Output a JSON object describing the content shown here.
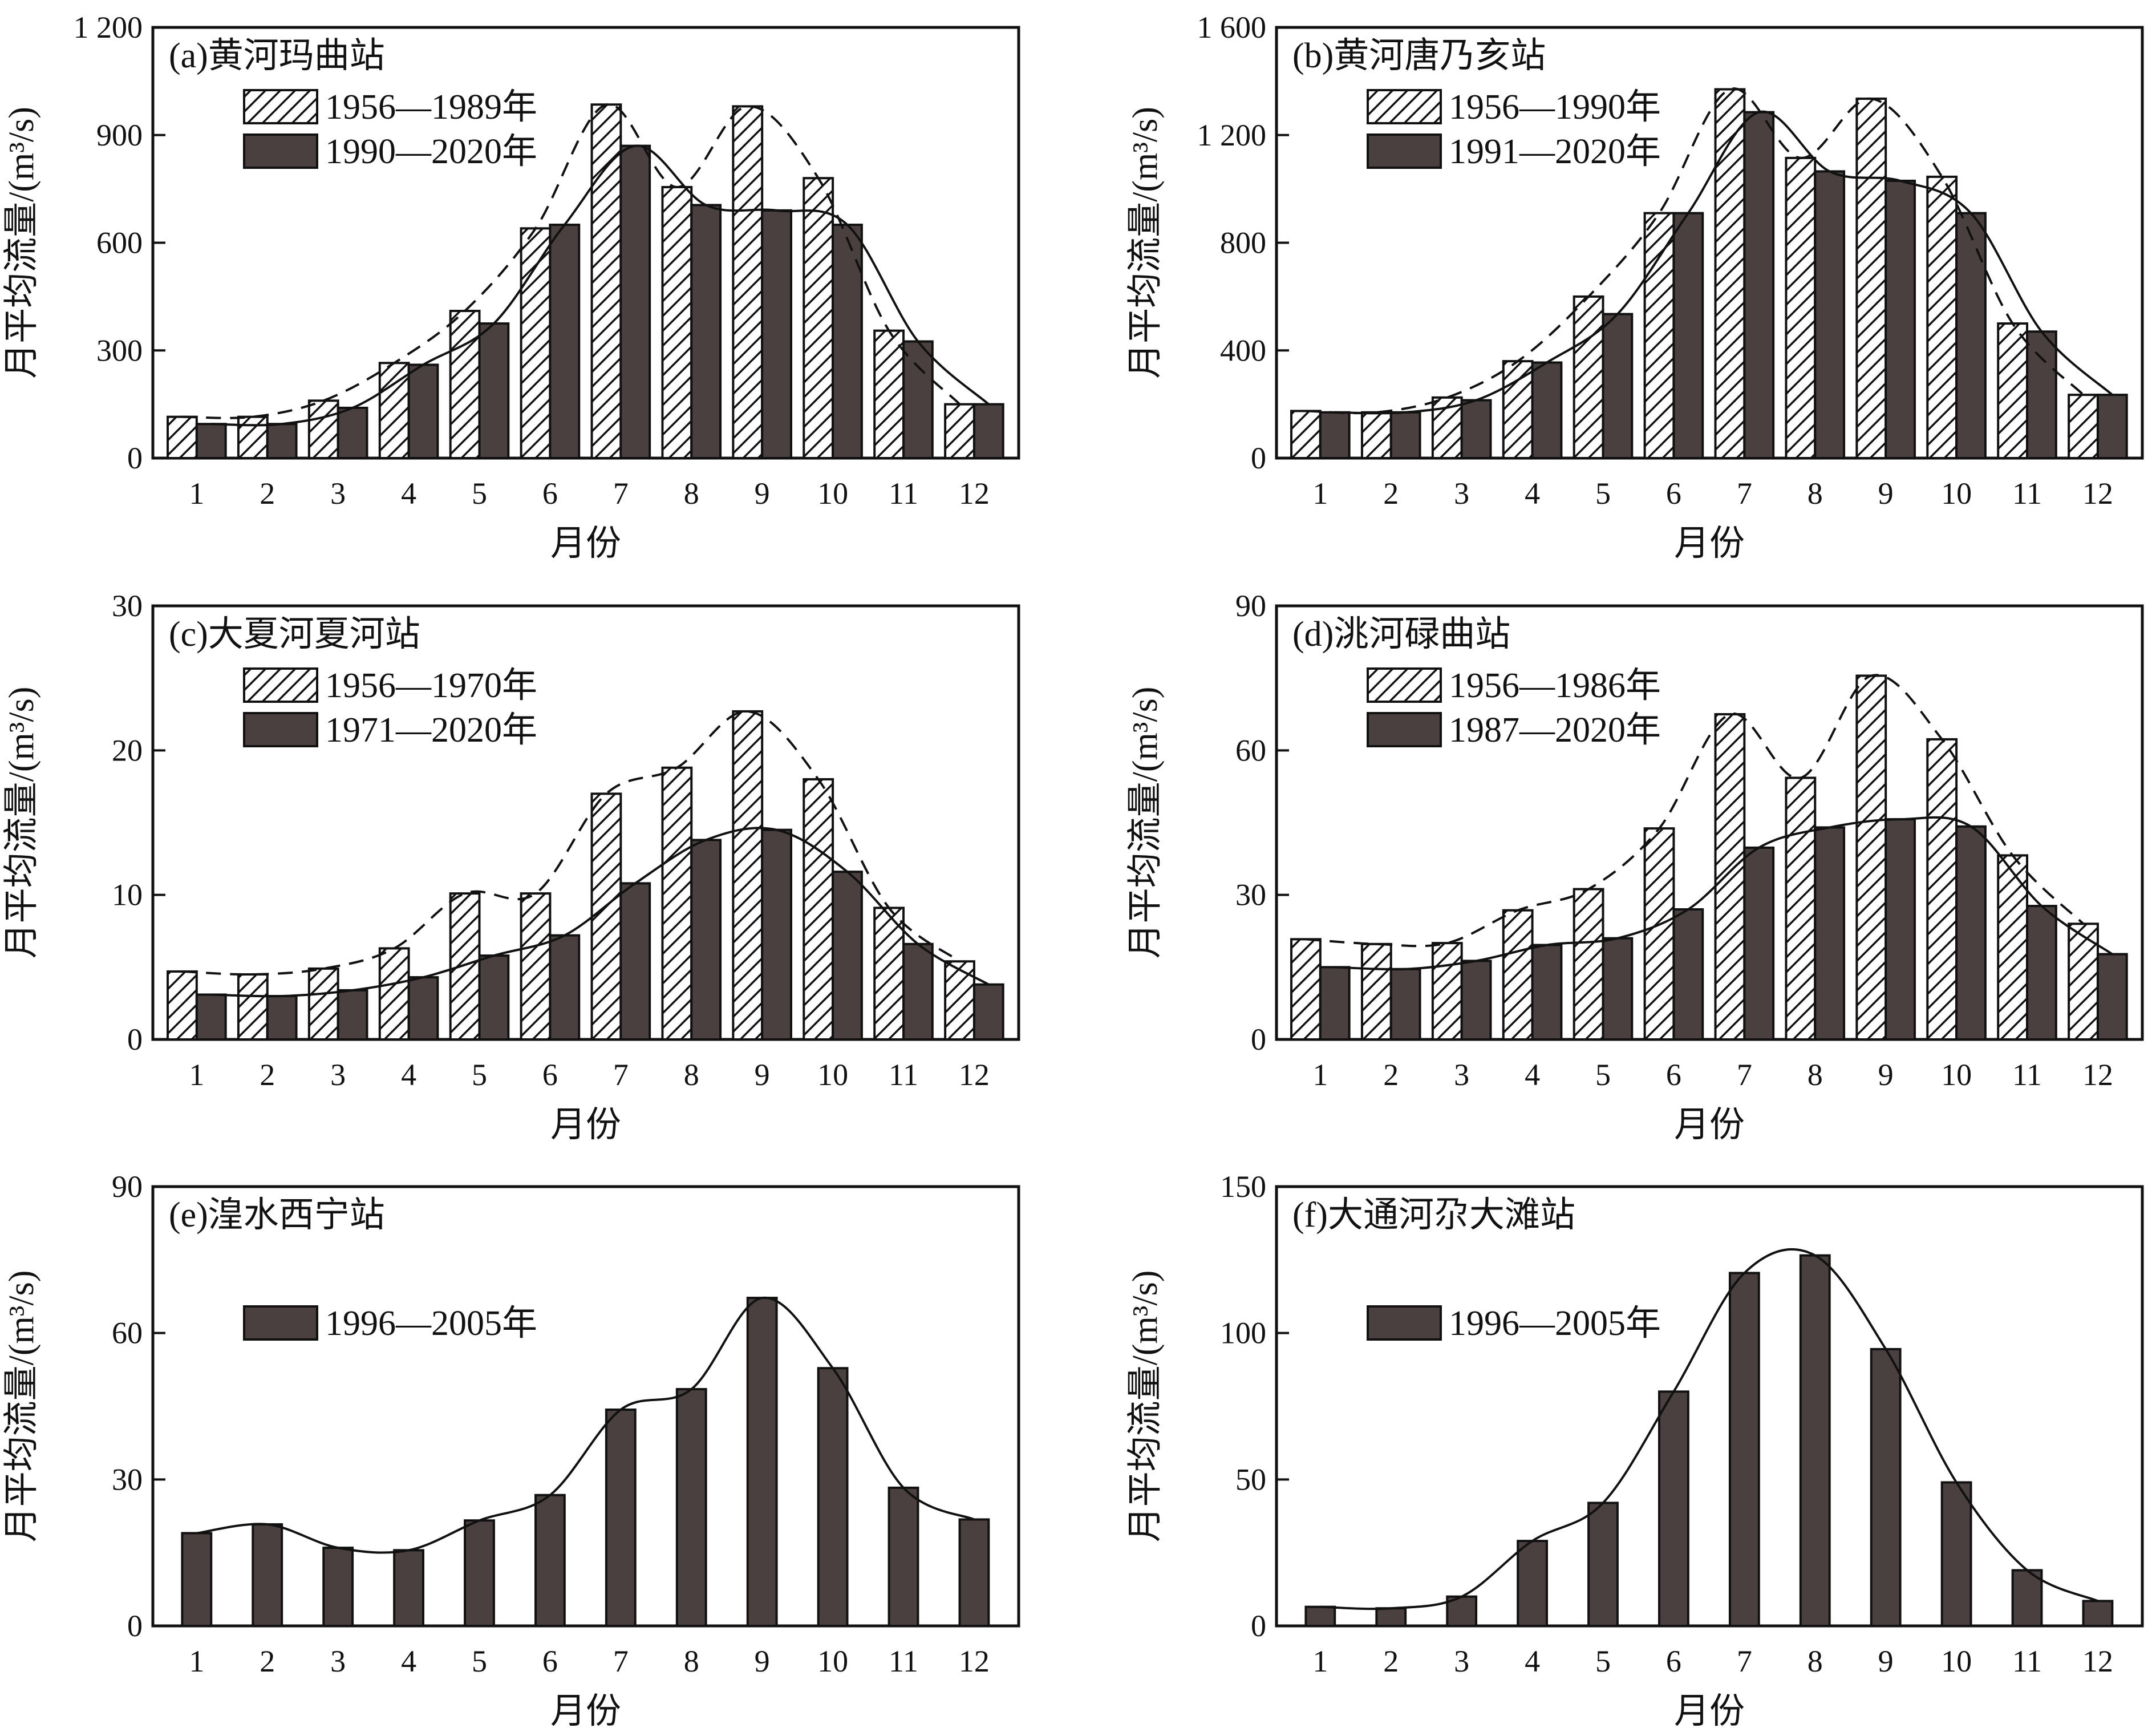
{
  "figure": {
    "dark_color": "#4a4040",
    "line_color": "#111111"
  },
  "chart_data": [
    {
      "type": "bar",
      "title": "(a)黄河玛曲站",
      "xlabel": "月份",
      "ylabel": "月平均流量/(m³/s)",
      "categories": [
        "1",
        "2",
        "3",
        "4",
        "5",
        "6",
        "7",
        "8",
        "9",
        "10",
        "11",
        "12"
      ],
      "y_ticks": [
        "0",
        "300",
        "600",
        "900",
        "1 200"
      ],
      "ylim": [
        0,
        1200
      ],
      "series": [
        {
          "name": "1956—1989年",
          "pattern": "hatched",
          "values": [
            115,
            115,
            160,
            265,
            410,
            640,
            985,
            755,
            980,
            780,
            355,
            150
          ]
        },
        {
          "name": "1990—2020年",
          "pattern": "dark",
          "values": [
            95,
            95,
            140,
            260,
            375,
            650,
            870,
            705,
            690,
            650,
            325,
            150
          ]
        }
      ],
      "trend_lines": [
        {
          "series": "1956—1989年",
          "style": "dashed"
        },
        {
          "series": "1990—2020年",
          "style": "solid"
        }
      ]
    },
    {
      "type": "bar",
      "title": "(b)黄河唐乃亥站",
      "xlabel": "月份",
      "ylabel": "月平均流量/(m³/s)",
      "categories": [
        "1",
        "2",
        "3",
        "4",
        "5",
        "6",
        "7",
        "8",
        "9",
        "10",
        "11",
        "12"
      ],
      "y_ticks": [
        "0",
        "400",
        "800",
        "1 200",
        "1 600"
      ],
      "ylim": [
        0,
        1600
      ],
      "series": [
        {
          "name": "1956—1990年",
          "pattern": "hatched",
          "values": [
            175,
            170,
            225,
            360,
            600,
            910,
            1370,
            1115,
            1335,
            1045,
            500,
            235
          ]
        },
        {
          "name": "1991—2020年",
          "pattern": "dark",
          "values": [
            170,
            170,
            215,
            355,
            535,
            910,
            1285,
            1065,
            1030,
            910,
            470,
            235
          ]
        }
      ],
      "trend_lines": [
        {
          "series": "1956—1990年",
          "style": "dashed"
        },
        {
          "series": "1991—2020年",
          "style": "solid"
        }
      ]
    },
    {
      "type": "bar",
      "title": "(c)大夏河夏河站",
      "xlabel": "月份",
      "ylabel": "月平均流量/(m³/s)",
      "categories": [
        "1",
        "2",
        "3",
        "4",
        "5",
        "6",
        "7",
        "8",
        "9",
        "10",
        "11",
        "12"
      ],
      "y_ticks": [
        "0",
        "10",
        "20",
        "30"
      ],
      "ylim": [
        0,
        30
      ],
      "series": [
        {
          "name": "1956—1970年",
          "pattern": "hatched",
          "values": [
            4.7,
            4.5,
            4.9,
            6.3,
            10.1,
            10.1,
            17.0,
            18.8,
            22.7,
            18.0,
            9.1,
            5.4
          ]
        },
        {
          "name": "1971—2020年",
          "pattern": "dark",
          "values": [
            3.1,
            3.0,
            3.4,
            4.3,
            5.8,
            7.2,
            10.8,
            13.8,
            14.5,
            11.6,
            6.6,
            3.8
          ]
        }
      ],
      "trend_lines": [
        {
          "series": "1956—1970年",
          "style": "dashed"
        },
        {
          "series": "1971—2020年",
          "style": "solid"
        }
      ]
    },
    {
      "type": "bar",
      "title": "(d)洮河碌曲站",
      "xlabel": "月份",
      "ylabel": "月平均流量/(m³/s)",
      "categories": [
        "1",
        "2",
        "3",
        "4",
        "5",
        "6",
        "7",
        "8",
        "9",
        "10",
        "11",
        "12"
      ],
      "y_ticks": [
        "0",
        "30",
        "60",
        "90"
      ],
      "ylim": [
        0,
        90
      ],
      "series": [
        {
          "name": "1956—1986年",
          "pattern": "hatched",
          "values": [
            20.8,
            19.8,
            20.0,
            26.8,
            31.2,
            43.8,
            67.5,
            54.3,
            75.5,
            62.3,
            38.2,
            24.0
          ]
        },
        {
          "name": "1987—2020年",
          "pattern": "dark",
          "values": [
            15.0,
            14.6,
            16.3,
            19.6,
            21.0,
            27.0,
            39.8,
            44.0,
            45.7,
            44.2,
            27.7,
            17.7
          ]
        }
      ],
      "trend_lines": [
        {
          "series": "1956—1986年",
          "style": "dashed"
        },
        {
          "series": "1987—2020年",
          "style": "solid"
        }
      ]
    },
    {
      "type": "bar",
      "title": "(e)湟水西宁站",
      "xlabel": "月份",
      "ylabel": "月平均流量/(m³/s)",
      "categories": [
        "1",
        "2",
        "3",
        "4",
        "5",
        "6",
        "7",
        "8",
        "9",
        "10",
        "11",
        "12"
      ],
      "y_ticks": [
        "0",
        "30",
        "60",
        "90"
      ],
      "ylim": [
        0,
        90
      ],
      "series": [
        {
          "name": "1996—2005年",
          "pattern": "dark",
          "values": [
            19.0,
            20.8,
            16.0,
            15.5,
            21.6,
            26.8,
            44.3,
            48.5,
            67.2,
            52.8,
            28.3,
            21.8
          ]
        }
      ],
      "trend_lines": [
        {
          "series": "1996—2005年",
          "style": "solid"
        }
      ]
    },
    {
      "type": "bar",
      "title": "(f)大通河尕大滩站",
      "xlabel": "月份",
      "ylabel": "月平均流量/(m³/s)",
      "categories": [
        "1",
        "2",
        "3",
        "4",
        "5",
        "6",
        "7",
        "8",
        "9",
        "10",
        "11",
        "12"
      ],
      "y_ticks": [
        "0",
        "50",
        "100",
        "150"
      ],
      "ylim": [
        0,
        150
      ],
      "series": [
        {
          "name": "1996—2005年",
          "pattern": "dark",
          "values": [
            6.5,
            6.0,
            10.0,
            29.0,
            42.0,
            80.0,
            120.5,
            126.5,
            94.5,
            49.0,
            19.0,
            8.5
          ]
        }
      ],
      "trend_lines": [
        {
          "series": "1996—2005年",
          "style": "solid"
        }
      ]
    }
  ]
}
